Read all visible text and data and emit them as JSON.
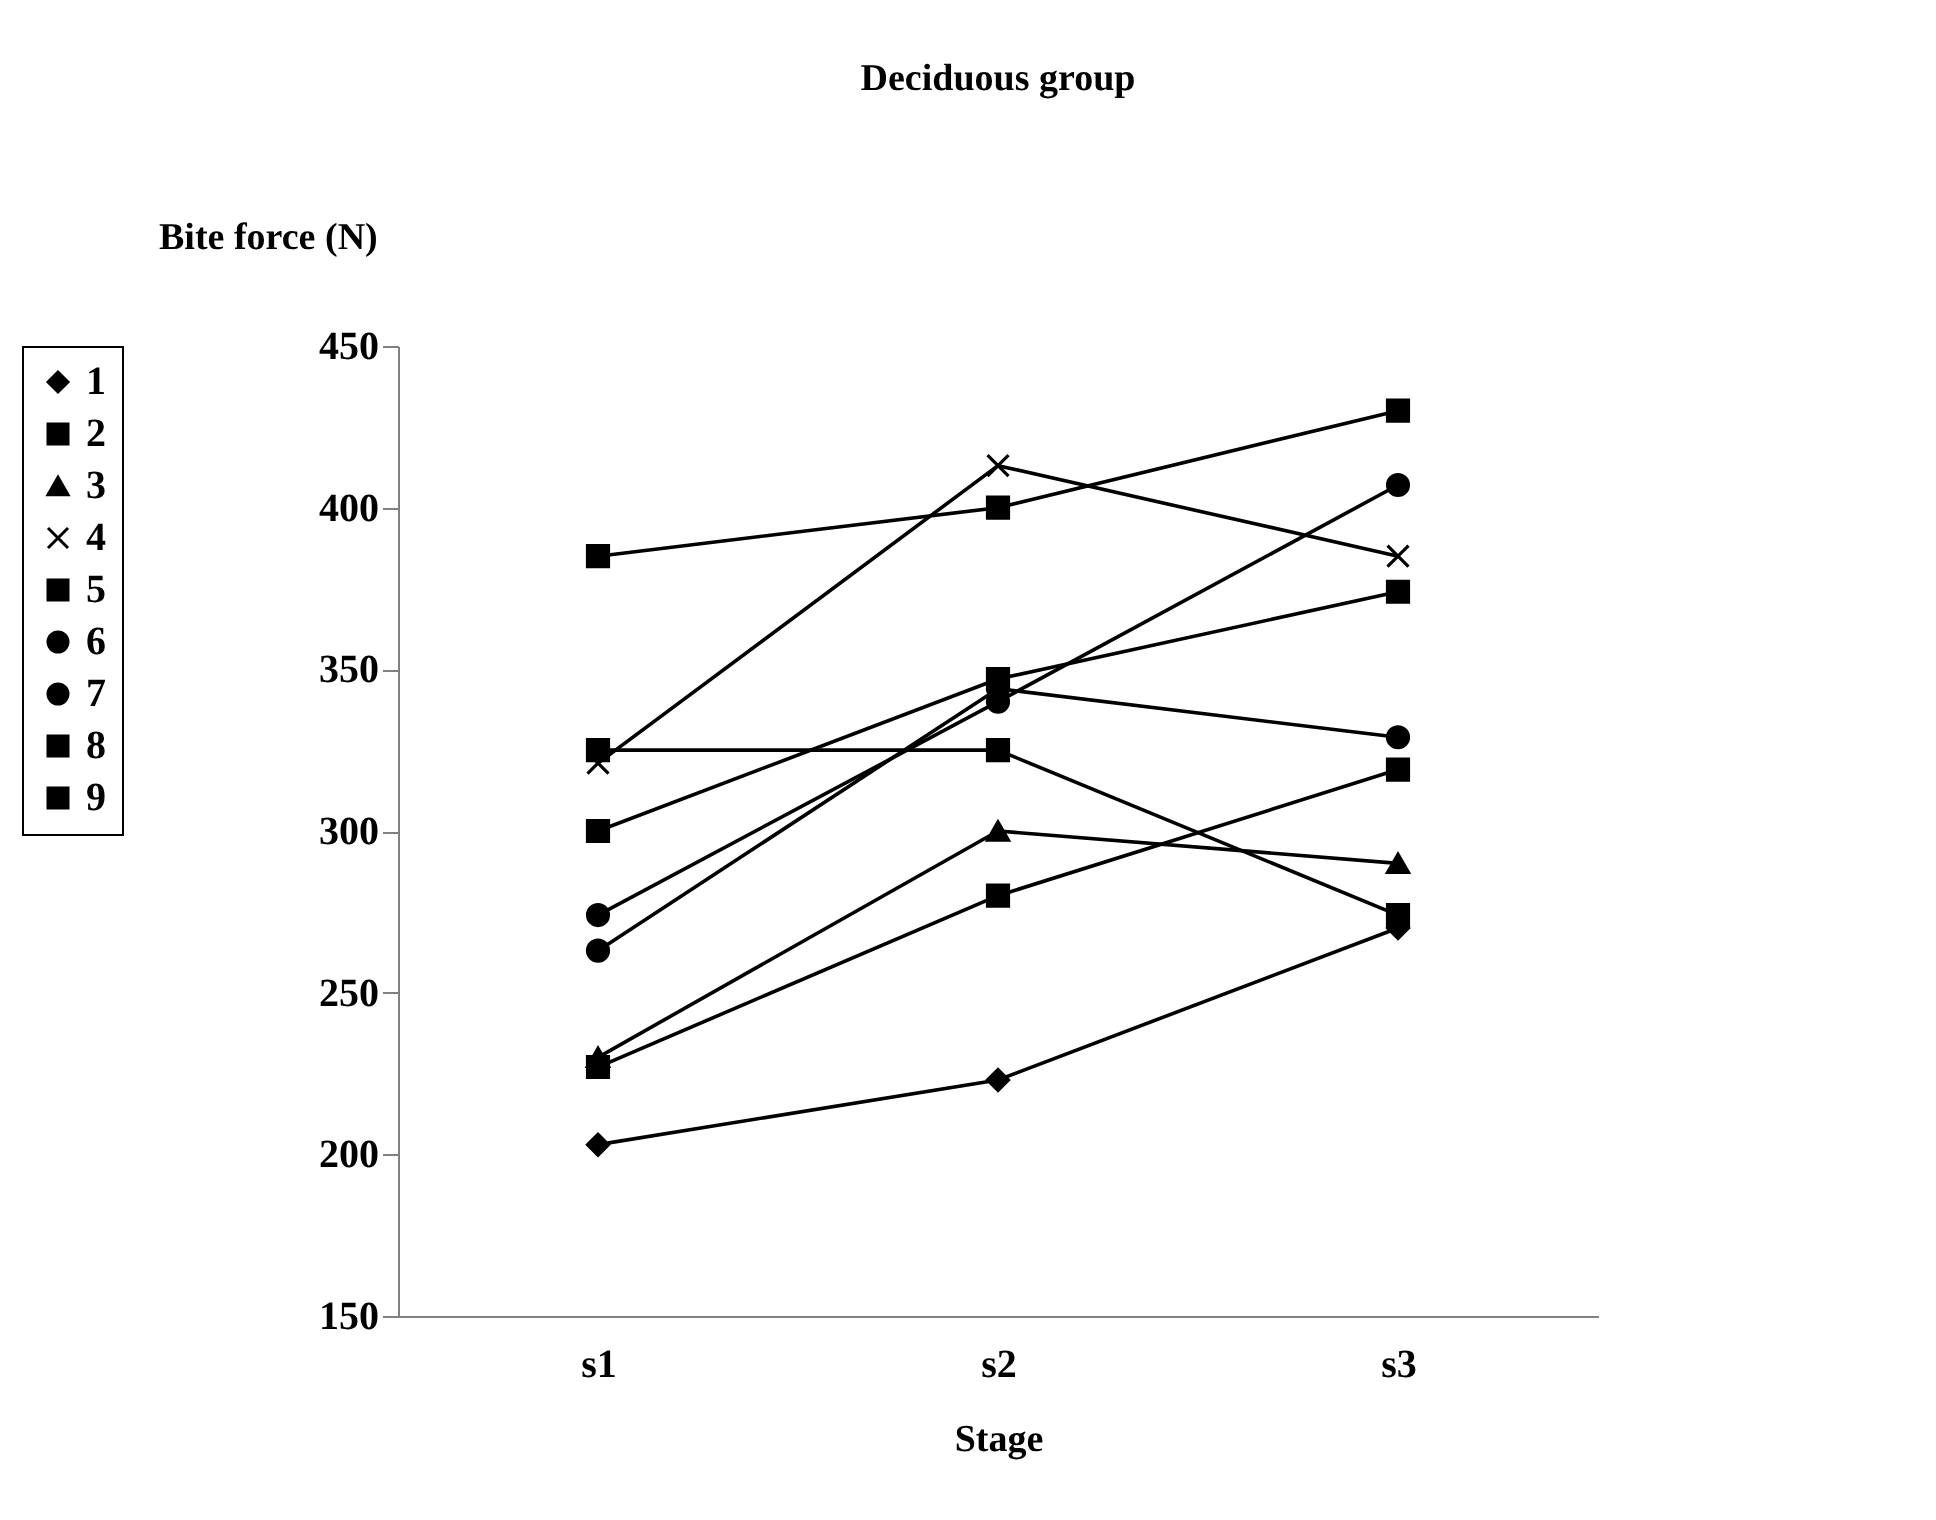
{
  "chart_data": {
    "type": "line",
    "title": "Deciduous group",
    "xlabel": "Stage",
    "ylabel": "Bite force (N)",
    "categories": [
      "s1",
      "s2",
      "s3"
    ],
    "ylim": [
      150,
      450
    ],
    "yticks": [
      150,
      200,
      250,
      300,
      350,
      400,
      450
    ],
    "legend": "left",
    "line_style": "solid",
    "series": [
      {
        "name": "1",
        "color": "#000000",
        "marker": "diamond",
        "values": [
          203,
          223,
          270
        ]
      },
      {
        "name": "2",
        "color": "#000000",
        "marker": "square",
        "values": [
          385,
          400,
          430
        ]
      },
      {
        "name": "3",
        "color": "#000000",
        "marker": "triangle",
        "values": [
          230,
          300,
          290
        ]
      },
      {
        "name": "4",
        "color": "#000000",
        "marker": "cross",
        "values": [
          321,
          413,
          385
        ]
      },
      {
        "name": "5",
        "color": "#000000",
        "marker": "square",
        "values": [
          300,
          347,
          374
        ]
      },
      {
        "name": "6",
        "color": "#000000",
        "marker": "circle",
        "values": [
          274,
          340,
          407
        ]
      },
      {
        "name": "7",
        "color": "#000000",
        "marker": "circle",
        "values": [
          263,
          344,
          329
        ]
      },
      {
        "name": "8",
        "color": "#000000",
        "marker": "square",
        "values": [
          325,
          325,
          274
        ]
      },
      {
        "name": "9",
        "color": "#000000",
        "marker": "square",
        "values": [
          227,
          280,
          319
        ]
      }
    ]
  }
}
